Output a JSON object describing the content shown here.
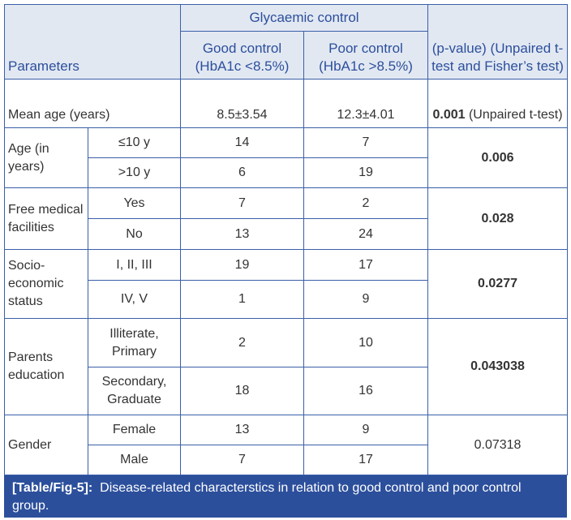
{
  "table": {
    "headers": {
      "parameters": "Parameters",
      "group": "Glycaemic control",
      "good": "Good control (HbA1c <8.5%)",
      "poor": "Poor control (HbA1c >8.5%)",
      "pvalue": "(p-value) (Unpaired t-test and Fisher’s test)"
    },
    "mean_age": {
      "label": "Mean age (years)",
      "good": "8.5±3.54",
      "poor": "12.3±4.01",
      "p_bold": "0.001",
      "p_note": " (Unpaired t-test)"
    },
    "groups": [
      {
        "label": "Age (in years)",
        "p": "0.006",
        "rows": [
          {
            "sub": "≤10 y",
            "good": "14",
            "poor": "7"
          },
          {
            "sub": ">10 y",
            "good": "6",
            "poor": "19"
          }
        ]
      },
      {
        "label": "Free medical facilities",
        "p": "0.028",
        "rows": [
          {
            "sub": "Yes",
            "good": "7",
            "poor": "2"
          },
          {
            "sub": "No",
            "good": "13",
            "poor": "24"
          }
        ]
      },
      {
        "label": "Socio-economic status",
        "p": "0.0277",
        "rows": [
          {
            "sub": "I, II, III",
            "good": "19",
            "poor": "17"
          },
          {
            "sub": "IV, V",
            "good": "1",
            "poor": "9"
          }
        ]
      },
      {
        "label": "Parents education",
        "p": "0.043038",
        "rows": [
          {
            "sub": "Illiterate, Primary",
            "good": "2",
            "poor": "10"
          },
          {
            "sub": "Secondary, Graduate",
            "good": "18",
            "poor": "16"
          }
        ]
      },
      {
        "label": "Gender",
        "p": "0.07318",
        "rows": [
          {
            "sub": "Female",
            "good": "13",
            "poor": "9"
          },
          {
            "sub": "Male",
            "good": "7",
            "poor": "17"
          }
        ]
      }
    ]
  },
  "caption": {
    "label": "[Table/Fig-5]:",
    "text": "Disease-related characterstics in relation to good control and poor control group."
  }
}
